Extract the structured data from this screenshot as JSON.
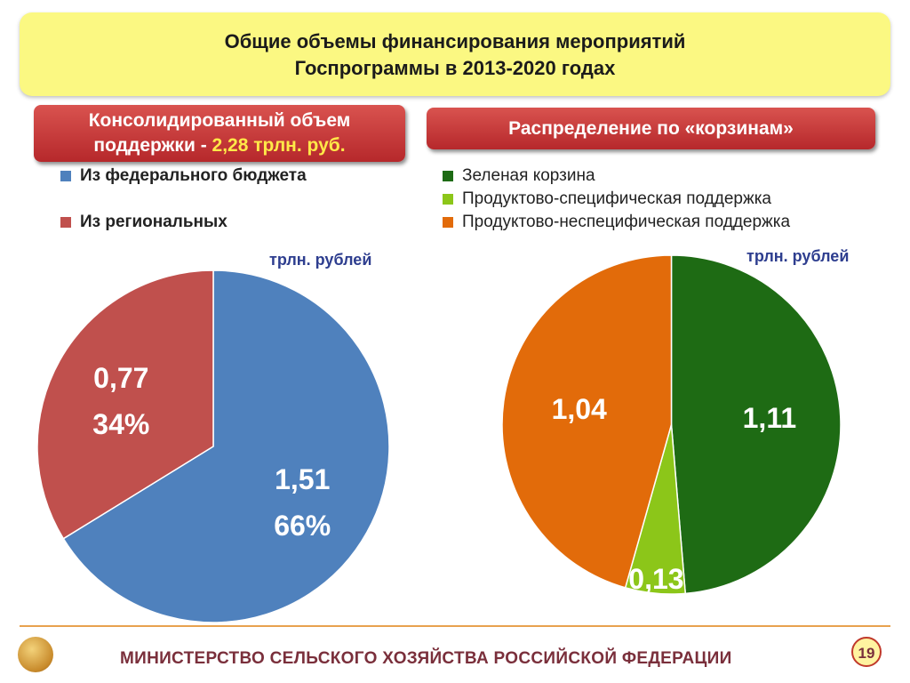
{
  "title": {
    "line1": "Общие объемы финансирования мероприятий",
    "line2": "Госпрограммы в 2013-2020 годах"
  },
  "left_banner": {
    "line1": "Консолидированный объем",
    "line2_prefix": "поддержки - ",
    "line2_accent": "2,28 трлн. руб."
  },
  "right_banner": {
    "text": "Распределение по «корзинам»"
  },
  "footer": {
    "ministry": "МИНИСТЕРСТВО СЕЛЬСКОГО ХОЗЯЙСТВА РОССИЙСКОЙ ФЕДЕРАЦИИ",
    "page": "19"
  },
  "chart_data": [
    {
      "type": "pie",
      "unit_label": "трлн. рублей",
      "slices": [
        {
          "name": "Из федерального бюджета",
          "value": 1.51,
          "label": "1,51",
          "percent_label": "66%",
          "color": "#4f81bd"
        },
        {
          "name": "Из региональных",
          "value": 0.77,
          "label": "0,77",
          "percent_label": "34%",
          "color": "#c0504d"
        }
      ],
      "legend": [
        "Из федерального бюджета",
        "Из региональных"
      ]
    },
    {
      "type": "pie",
      "unit_label": "трлн. рублей",
      "slices": [
        {
          "name": "Зеленая корзина",
          "value": 1.11,
          "label": "1,11",
          "color": "#1e6b14"
        },
        {
          "name": "Продуктово-специфическая поддержка",
          "value": 0.13,
          "label": "0,13",
          "color": "#8cc619"
        },
        {
          "name": "Продуктово-неспецифическая поддержка",
          "value": 1.04,
          "label": "1,04",
          "color": "#e26b0a"
        }
      ],
      "legend": [
        "Зеленая корзина",
        "Продуктово-специфическая поддержка",
        "Продуктово-неспецифическая поддержка"
      ]
    }
  ]
}
